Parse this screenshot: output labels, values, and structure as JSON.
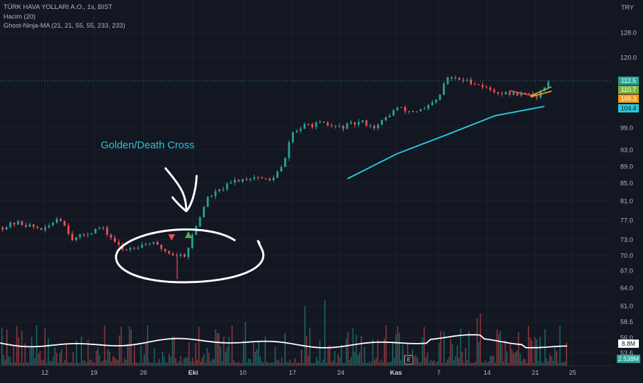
{
  "legend": {
    "title": "TÜRK HAVA YOLLARI A.O., 1s, BIST",
    "volume": "Hacim (20)",
    "ma": "Ghost-Ninja-MA (21, 21, 55, 55, 233, 233)"
  },
  "currency": "TRY",
  "annotation": "Golden/Death Cross",
  "price_axis": {
    "ticks": [
      "128.0",
      "120.0",
      "99.0",
      "93.0",
      "89.0",
      "85.0",
      "81.0",
      "77.0",
      "73.0",
      "70.0",
      "67.0",
      "64.0",
      "61.0",
      "58.5",
      "56.0",
      "53.6"
    ]
  },
  "price_labels": {
    "last": "112.5",
    "ma_fast": "110.7",
    "ma_mid": "109.3",
    "ma_slow": "104.4",
    "volume_ma": "8.8M",
    "volume": "2.538M"
  },
  "date_axis": {
    "labels": [
      "12",
      "19",
      "26",
      "Eki",
      "10",
      "17",
      "24",
      "Kas",
      "7",
      "14",
      "21",
      "25"
    ]
  },
  "e_badge": "E",
  "colors": {
    "background": "#131722",
    "up": "#26a69a",
    "down": "#ef5350",
    "ma_slow": "#26c6da",
    "ma_mid": "#ffa726",
    "ma_fast": "#8bc34a",
    "ma_red": "#ef5350",
    "volume_ma": "#ffffff",
    "signal_down": "#ef5350",
    "signal_up": "#4caf50"
  },
  "chart_data": {
    "type": "candlestick",
    "series": [
      {
        "name": "TÜRK HAVA YOLLARI A.O."
      },
      {
        "name": "Hacim (20)"
      },
      {
        "name": "Ghost-Ninja-MA (21, 21, 55, 55, 233, 233)"
      }
    ],
    "price_knots": [
      [
        "Sep 6",
        75.5
      ],
      [
        "Sep 8",
        76.5
      ],
      [
        "Sep 12",
        75
      ],
      [
        "Sep 14",
        77.8
      ],
      [
        "Sep 16",
        73
      ],
      [
        "Sep 20",
        75.5
      ],
      [
        "Sep 23",
        71
      ],
      [
        "Sep 27",
        72.5
      ],
      [
        "Sep 30",
        70.2
      ],
      [
        "Oct 2",
        70
      ],
      [
        "Oct 3",
        74
      ],
      [
        "Oct 4",
        77.5
      ],
      [
        "Oct 5",
        81.5
      ],
      [
        "Oct 7",
        83.5
      ],
      [
        "Oct 9",
        85.5
      ],
      [
        "Oct 12",
        86.5
      ],
      [
        "Oct 14",
        85.5
      ],
      [
        "Oct 16",
        89.5
      ],
      [
        "Oct 17",
        97.5
      ],
      [
        "Oct 19",
        99.5
      ],
      [
        "Oct 21",
        100
      ],
      [
        "Oct 24",
        99
      ],
      [
        "Oct 27",
        100.5
      ],
      [
        "Oct 29",
        99
      ],
      [
        "Nov 1",
        104
      ],
      [
        "Nov 3",
        103
      ],
      [
        "Nov 5",
        103.5
      ],
      [
        "Nov 7",
        107
      ],
      [
        "Nov 8",
        113.5
      ],
      [
        "Nov 10",
        113
      ],
      [
        "Nov 12",
        112
      ],
      [
        "Nov 14",
        110
      ],
      [
        "Nov 16",
        108.5
      ],
      [
        "Nov 19",
        108.5
      ],
      [
        "Nov 21",
        107.5
      ],
      [
        "Nov 22",
        111
      ],
      [
        "Nov 23",
        112.5
      ]
    ],
    "ma_slow": [
      [
        "Oct 25",
        86
      ],
      [
        "Nov 1",
        92
      ],
      [
        "Nov 8",
        97
      ],
      [
        "Nov 15",
        102
      ],
      [
        "Nov 22",
        104.4
      ]
    ],
    "ma_mid": [
      [
        "Nov 20",
        107.5
      ],
      [
        "Nov 23",
        109.3
      ]
    ],
    "ma_fast": [
      [
        "Nov 20",
        107.8
      ],
      [
        "Nov 23",
        110.7
      ]
    ],
    "ma_red": [
      [
        "Nov 17",
        109.5
      ],
      [
        "Nov 20",
        108
      ],
      [
        "Nov 21",
        108.2
      ]
    ],
    "signals": [
      {
        "type": "death",
        "date": "Oct 1",
        "price": 73.5
      },
      {
        "type": "golden",
        "date": "Oct 2",
        "price": 74
      }
    ]
  }
}
